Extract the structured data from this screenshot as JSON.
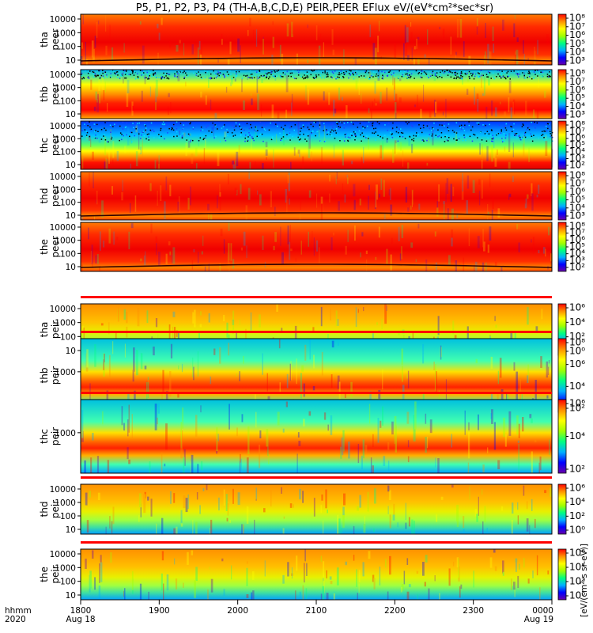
{
  "chart_data": {
    "type": "heatmap",
    "title": "P5, P1, P2, P3, P4 (TH-A,B,C,D,E) PEIR,PEER EFlux eV/(eV*cm²*sec*sr)",
    "x_axis": {
      "corner_label_1": "hhmm",
      "corner_label_2": "2020",
      "ticks": [
        {
          "value": "1800",
          "date": "Aug 18"
        },
        {
          "value": "1900",
          "date": ""
        },
        {
          "value": "2000",
          "date": ""
        },
        {
          "value": "2100",
          "date": ""
        },
        {
          "value": "2200",
          "date": ""
        },
        {
          "value": "2300",
          "date": ""
        },
        {
          "value": "0000",
          "date": "Aug 19"
        }
      ]
    },
    "colorbar_title": "[eV/(cm²-s sr-eV)]",
    "colormap": [
      "#6a00a8",
      "#0000ff",
      "#00b0ff",
      "#00ff80",
      "#a0ff00",
      "#ffff00",
      "#ff9000",
      "#ff0000"
    ],
    "panels": [
      {
        "id": "tha_peer",
        "ylabel_1": "tha",
        "ylabel_2": "peer",
        "scale": "log",
        "yticks": [
          "10000",
          "1000",
          "100",
          "10"
        ],
        "cbar_ticks": [
          "10⁸",
          "10⁷",
          "10⁶",
          "10⁵",
          "10⁴",
          "10³"
        ],
        "cbar_style": "dense",
        "style": "peer-active"
      },
      {
        "id": "thb_peer",
        "ylabel_1": "thb",
        "ylabel_2": "peer",
        "scale": "log",
        "yticks": [
          "10000",
          "1000",
          "100",
          "10"
        ],
        "cbar_ticks": [
          "10⁸",
          "10⁷",
          "10⁶",
          "10⁵",
          "10⁴",
          "10³"
        ],
        "cbar_style": "dense",
        "style": "peer-quiet"
      },
      {
        "id": "thc_peer",
        "ylabel_1": "thc",
        "ylabel_2": "peer",
        "scale": "log",
        "yticks": [
          "10000",
          "1000",
          "100",
          "10"
        ],
        "cbar_ticks": [
          "10⁸",
          "10⁷",
          "10⁶",
          "10⁵",
          "10⁴",
          "10³",
          "10²"
        ],
        "cbar_style": "dense",
        "style": "peer-noisy"
      },
      {
        "id": "thd_peer",
        "ylabel_1": "thd",
        "ylabel_2": "peer",
        "scale": "log",
        "yticks": [
          "10000",
          "1000",
          "100",
          "10"
        ],
        "cbar_ticks": [
          "10⁸",
          "10⁷",
          "10⁶",
          "10⁵",
          "10⁴",
          "10³"
        ],
        "cbar_style": "dense",
        "style": "peer-active"
      },
      {
        "id": "the_peer",
        "ylabel_1": "the",
        "ylabel_2": "peer",
        "scale": "log",
        "yticks": [
          "10000",
          "1000",
          "100",
          "10"
        ],
        "cbar_ticks": [
          "10⁸",
          "10⁷",
          "10⁶",
          "10⁵",
          "10⁴",
          "10³",
          "10²"
        ],
        "cbar_style": "dense",
        "style": "peer-active"
      },
      {
        "id": "tha_peir",
        "ylabel_1": "tha",
        "ylabel_2": "peir",
        "scale": "log",
        "yticks": [
          "10000",
          "1000",
          "100",
          "10"
        ],
        "cbar_ticks": [
          "10⁶",
          "10⁴",
          "10²",
          "10⁰"
        ],
        "cbar_style": "sparse",
        "style": "peir-normal"
      },
      {
        "id": "thb_peir",
        "ylabel_1": "thb",
        "ylabel_2": "peir",
        "scale": "log",
        "yticks": [
          "1000"
        ],
        "cbar_ticks": [
          "10⁸",
          "10⁶",
          "10⁴",
          "10²"
        ],
        "cbar_style": "sparse",
        "style": "peir-narrow"
      },
      {
        "id": "thc_peir",
        "ylabel_1": "thc",
        "ylabel_2": "peir",
        "scale": "log",
        "yticks": [
          "1000"
        ],
        "cbar_ticks": [
          "10⁶",
          "10⁴",
          "10²"
        ],
        "cbar_style": "sparse",
        "style": "peir-narrow"
      },
      {
        "id": "thd_peir",
        "ylabel_1": "thd",
        "ylabel_2": "peir",
        "scale": "log",
        "yticks": [
          "10000",
          "1000",
          "100",
          "10"
        ],
        "cbar_ticks": [
          "10⁶",
          "10⁴",
          "10²",
          "10⁰"
        ],
        "cbar_style": "sparse",
        "style": "peir-normal"
      },
      {
        "id": "the_peir",
        "ylabel_1": "the",
        "ylabel_2": "peir",
        "scale": "log",
        "yticks": [
          "10000",
          "1000",
          "100",
          "10"
        ],
        "cbar_ticks": [
          "10⁶",
          "10⁴",
          "10²",
          "10⁰"
        ],
        "cbar_style": "sparse",
        "style": "peir-normal"
      }
    ]
  }
}
